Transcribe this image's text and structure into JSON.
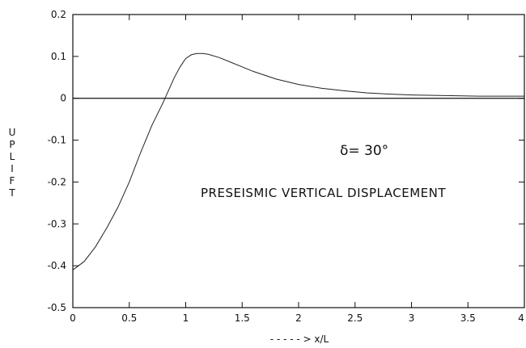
{
  "chart_data": {
    "type": "line",
    "title": "",
    "xlabel": "- - - - - > x/L",
    "ylabel": "U P L I F T",
    "xlim": [
      0,
      4
    ],
    "ylim": [
      -0.5,
      0.2
    ],
    "x_ticks": [
      0,
      0.5,
      1,
      1.5,
      2,
      2.5,
      3,
      3.5,
      4
    ],
    "x_tick_labels": [
      "0",
      "0.5",
      "1",
      "1.5",
      "2",
      "2.5",
      "3",
      "3.5",
      "4"
    ],
    "y_ticks": [
      -0.5,
      -0.4,
      -0.3,
      -0.2,
      -0.1,
      0,
      0.1,
      0.2
    ],
    "y_tick_labels": [
      "-0.5",
      "-0.4",
      "-0.3",
      "-0.2",
      "-0.1",
      "0",
      "0.1",
      "0.2"
    ],
    "reference_line_y": 0,
    "grid": false,
    "series": [
      {
        "x": [
          0,
          0.1,
          0.2,
          0.3,
          0.4,
          0.5,
          0.6,
          0.7,
          0.8,
          0.85,
          0.9,
          0.95,
          1.0,
          1.05,
          1.1,
          1.15,
          1.2,
          1.3,
          1.4,
          1.5,
          1.6,
          1.8,
          2.0,
          2.2,
          2.4,
          2.6,
          2.8,
          3.0,
          3.2,
          3.4,
          3.6,
          3.8,
          4.0
        ],
        "y": [
          -0.41,
          -0.39,
          -0.355,
          -0.31,
          -0.26,
          -0.2,
          -0.13,
          -0.065,
          -0.01,
          0.02,
          0.05,
          0.075,
          0.095,
          0.104,
          0.107,
          0.107,
          0.105,
          0.097,
          0.086,
          0.075,
          0.064,
          0.046,
          0.033,
          0.024,
          0.018,
          0.013,
          0.01,
          0.008,
          0.007,
          0.006,
          0.005,
          0.005,
          0.005
        ]
      }
    ],
    "annotations": {
      "delta": "δ= 30°",
      "label": "PRESEISMIC VERTICAL DISPLACEMENT"
    }
  }
}
